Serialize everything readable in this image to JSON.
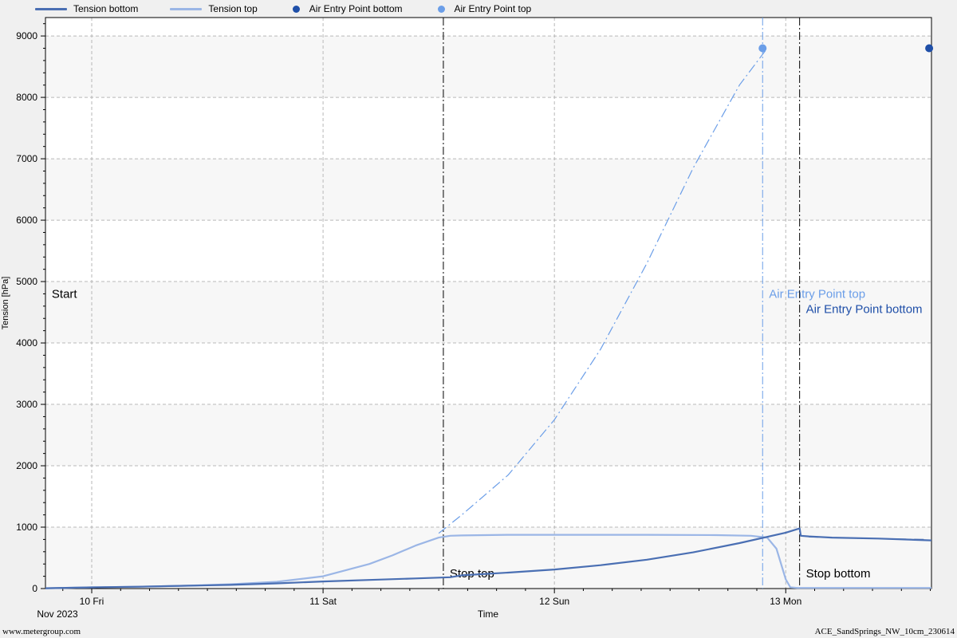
{
  "legend": {
    "items": [
      {
        "label": "Tension bottom",
        "kind": "line",
        "color": "#4a6fb3"
      },
      {
        "label": "Tension top",
        "kind": "line",
        "color": "#9bb6e6"
      },
      {
        "label": "Air Entry Point bottom",
        "kind": "dot",
        "color": "#1f4fa8"
      },
      {
        "label": "Air Entry Point top",
        "kind": "dot",
        "color": "#6b9ee8"
      }
    ]
  },
  "footer": {
    "left": "www.metergroup.com",
    "right": "ACE_SandSprings_NW_10cm_230614"
  },
  "chart_data": {
    "type": "line",
    "title": "",
    "xlabel": "Time",
    "ylabel": "Tension [hPa]",
    "x_units": "days since 2023-11-09 00:00",
    "xlim": [
      0.8,
      4.63
    ],
    "ylim": [
      0,
      9300
    ],
    "grid": true,
    "legend_position": "top",
    "x_ticks": [
      {
        "x": 1,
        "label": "10 Fri"
      },
      {
        "x": 2,
        "label": "11 Sat"
      },
      {
        "x": 3,
        "label": "12 Sun"
      },
      {
        "x": 4,
        "label": "13 Mon"
      }
    ],
    "x_period_label": "Nov 2023",
    "y_ticks": [
      0,
      1000,
      2000,
      3000,
      4000,
      5000,
      6000,
      7000,
      8000,
      9000
    ],
    "series": [
      {
        "name": "Tension top",
        "color": "#9bb6e6",
        "x": [
          0.8,
          1.0,
          1.2,
          1.4,
          1.6,
          1.8,
          2.0,
          2.2,
          2.3,
          2.4,
          2.5,
          2.55,
          2.6,
          2.7,
          2.8,
          3.0,
          3.4,
          3.7,
          3.85,
          3.92,
          3.96,
          4.0,
          4.02,
          4.05,
          4.63
        ],
        "y": [
          5,
          20,
          30,
          45,
          70,
          110,
          200,
          400,
          540,
          700,
          830,
          860,
          865,
          870,
          875,
          875,
          875,
          870,
          860,
          830,
          650,
          150,
          20,
          10,
          10
        ]
      },
      {
        "name": "Tension bottom",
        "color": "#4a6fb3",
        "x": [
          0.8,
          1.0,
          1.2,
          1.4,
          1.6,
          1.8,
          2.0,
          2.2,
          2.4,
          2.55,
          2.6,
          2.8,
          3.0,
          3.2,
          3.4,
          3.6,
          3.8,
          4.0,
          4.06,
          4.065,
          4.1,
          4.2,
          4.4,
          4.63
        ],
        "y": [
          5,
          20,
          30,
          45,
          60,
          85,
          115,
          140,
          165,
          185,
          215,
          260,
          310,
          380,
          470,
          590,
          740,
          910,
          980,
          860,
          850,
          830,
          815,
          785
        ]
      },
      {
        "name": "Tension top extrapolated",
        "color": "#6b9ee8",
        "style": "dashdot",
        "x": [
          2.5,
          2.6,
          2.8,
          3.0,
          3.2,
          3.4,
          3.6,
          3.8,
          3.92
        ],
        "y": [
          900,
          1200,
          1850,
          2750,
          3900,
          5300,
          6850,
          8200,
          8800
        ]
      },
      {
        "name": "Tension bottom extrapolated",
        "color": "#4a6fb3",
        "style": "dashdot",
        "x": [
          4.1,
          4.3,
          4.6
        ],
        "y": [
          840,
          820,
          800
        ]
      }
    ],
    "points": [
      {
        "name": "Air Entry Point top",
        "x": 3.9,
        "y": 8800,
        "color": "#6b9ee8"
      },
      {
        "name": "Air Entry Point bottom",
        "x": 4.62,
        "y": 8800,
        "color": "#1f4fa8"
      }
    ],
    "vlines": [
      {
        "x": 2.52,
        "color": "#000000",
        "style": "dashdot",
        "label": "Stop top",
        "label_color": "#000000",
        "label_y": 250
      },
      {
        "x": 3.9,
        "color": "#6b9ee8",
        "style": "dashdot",
        "label": "Air Entry Point top",
        "label_color": "#6b9ee8",
        "label_y": 4800
      },
      {
        "x": 4.06,
        "color": "#000000",
        "style": "dashdot",
        "label": "Stop bottom",
        "label_color": "#000000",
        "label_y": 250
      },
      {
        "x": 4.06,
        "color": "#1f4fa8",
        "style": "none",
        "label": "Air Entry Point bottom",
        "label_color": "#1f4fa8",
        "label_y": 4550
      }
    ],
    "annotations": [
      {
        "text": "Start",
        "x": 0.81,
        "y": 4800,
        "color": "#000000"
      }
    ]
  }
}
